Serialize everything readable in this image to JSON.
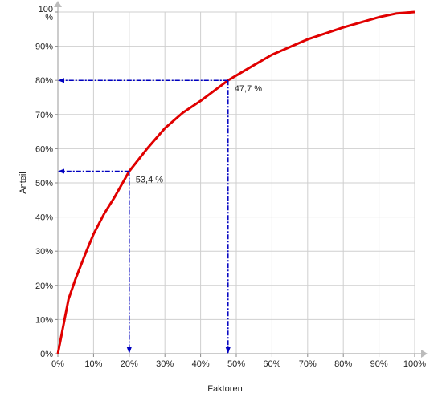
{
  "chart_data": {
    "type": "line",
    "x_label": "Faktoren",
    "y_label": "Anteil",
    "x": [
      0,
      3,
      5,
      8,
      10,
      13,
      16,
      20,
      25,
      30,
      35,
      40,
      47.7,
      55,
      60,
      70,
      80,
      90,
      95,
      100
    ],
    "series": [
      {
        "color": "#e00000",
        "values": [
          0,
          16,
          22,
          30,
          35,
          41,
          46,
          53.4,
          60,
          66,
          70.5,
          74,
          80,
          84.5,
          87.5,
          92,
          95.5,
          98.5,
          99.6,
          100
        ]
      }
    ],
    "xlim": [
      0,
      100
    ],
    "ylim": [
      0,
      100
    ],
    "xticks": [
      {
        "value": 0,
        "label": "0%"
      },
      {
        "value": 10,
        "label": "10%"
      },
      {
        "value": 20,
        "label": "20%"
      },
      {
        "value": 30,
        "label": "30%"
      },
      {
        "value": 40,
        "label": "40%"
      },
      {
        "value": 50,
        "label": "50%"
      },
      {
        "value": 60,
        "label": "60%"
      },
      {
        "value": 70,
        "label": "70%"
      },
      {
        "value": 80,
        "label": "80%"
      },
      {
        "value": 90,
        "label": "90%"
      },
      {
        "value": 100,
        "label": "100%"
      }
    ],
    "yticks": [
      {
        "value": 0,
        "label": "0%"
      },
      {
        "value": 10,
        "label": "10%"
      },
      {
        "value": 20,
        "label": "20%"
      },
      {
        "value": 30,
        "label": "30%"
      },
      {
        "value": 40,
        "label": "40%"
      },
      {
        "value": 50,
        "label": "50%"
      },
      {
        "value": 60,
        "label": "60%"
      },
      {
        "value": 70,
        "label": "70%"
      },
      {
        "value": 80,
        "label": "80%"
      },
      {
        "value": 90,
        "label": "90%"
      },
      {
        "value": 100,
        "label": "100 %"
      }
    ],
    "grid": true,
    "annotations": [
      {
        "x": 47.7,
        "y": 80,
        "label": "47,7 %",
        "color": "#0000c0"
      },
      {
        "x": 20,
        "y": 53.4,
        "label": "53,4 %",
        "color": "#0000c0"
      }
    ]
  }
}
